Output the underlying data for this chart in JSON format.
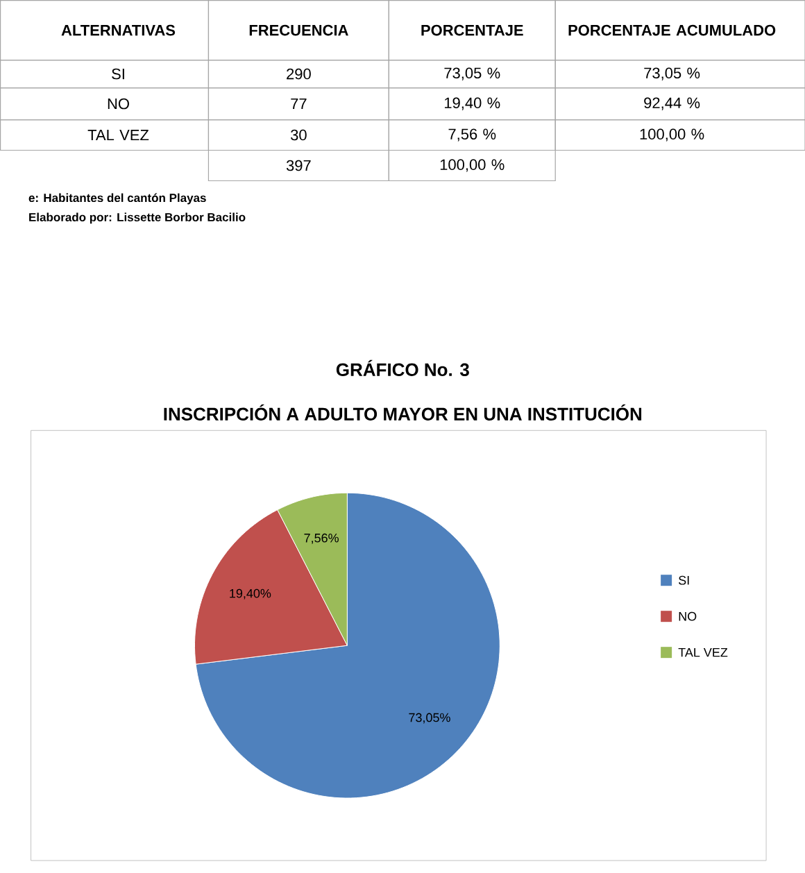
{
  "chart_data": {
    "type": "pie",
    "title": "GRÁFICO No. 3",
    "subtitle": "INSCRIPCIÓN A ADULTO MAYOR EN UNA INSTITUCIÓN",
    "categories": [
      "SI",
      "NO",
      "TAL VEZ"
    ],
    "values": [
      73.05,
      19.4,
      7.56
    ],
    "colors": [
      "#4f81bd",
      "#c0504d",
      "#9bbb59"
    ],
    "value_labels": [
      "73,05%",
      "19,40%",
      "7,56%"
    ],
    "legend": "right",
    "annotations": [
      "ALTERNATIVAS",
      "FRECUENCIA",
      "PORCENTAJE",
      "PORCENTAJE ACUMULADO",
      "SI",
      "290",
      "73,05 %",
      "73,05 %",
      "NO",
      "77",
      "19,40 %",
      "92,44 %",
      "TAL VEZ",
      "30",
      "7,56 %",
      "100,00 %",
      "397",
      "100,00 %",
      "e: Habitantes del cantón Playas",
      "Elaborado por: Lissette Borbor Bacilio"
    ]
  }
}
